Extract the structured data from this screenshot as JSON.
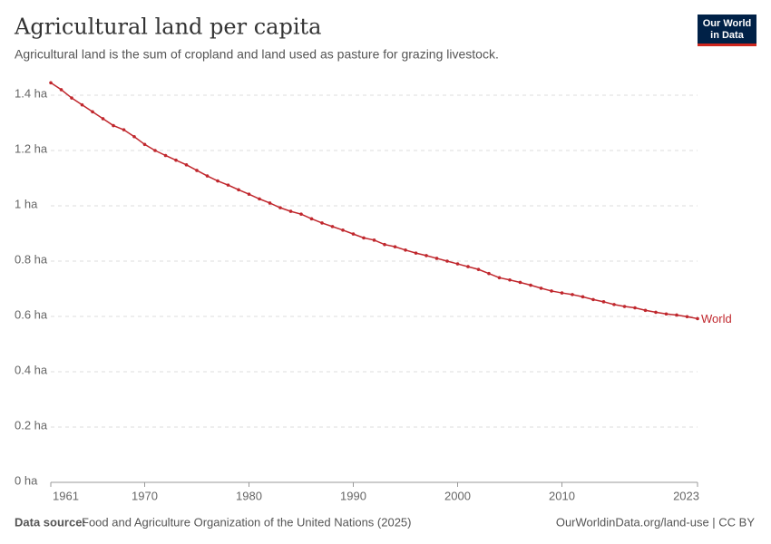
{
  "chart_data": {
    "type": "line",
    "title": "Agricultural land per capita",
    "subtitle": "Agricultural land is the sum of cropland and land used as pasture for grazing livestock.",
    "logo": [
      "Our World",
      "in Data"
    ],
    "source_label": "Data source:",
    "source": "Food and Agriculture Organization of the United Nations (2025)",
    "link": "OurWorldinData.org/land-use | CC BY",
    "x": [
      1961,
      1962,
      1963,
      1964,
      1965,
      1966,
      1967,
      1968,
      1969,
      1970,
      1971,
      1972,
      1973,
      1974,
      1975,
      1976,
      1977,
      1978,
      1979,
      1980,
      1981,
      1982,
      1983,
      1984,
      1985,
      1986,
      1987,
      1988,
      1989,
      1990,
      1991,
      1992,
      1993,
      1994,
      1995,
      1996,
      1997,
      1998,
      1999,
      2000,
      2001,
      2002,
      2003,
      2004,
      2005,
      2006,
      2007,
      2008,
      2009,
      2010,
      2011,
      2012,
      2013,
      2014,
      2015,
      2016,
      2017,
      2018,
      2019,
      2020,
      2021,
      2022,
      2023
    ],
    "series": [
      {
        "name": "World",
        "color": "#c0272d",
        "values": [
          1.445,
          1.42,
          1.39,
          1.365,
          1.34,
          1.315,
          1.29,
          1.275,
          1.25,
          1.222,
          1.2,
          1.182,
          1.165,
          1.148,
          1.128,
          1.108,
          1.09,
          1.075,
          1.058,
          1.042,
          1.025,
          1.01,
          0.993,
          0.98,
          0.97,
          0.953,
          0.938,
          0.925,
          0.912,
          0.898,
          0.884,
          0.876,
          0.86,
          0.852,
          0.84,
          0.829,
          0.82,
          0.81,
          0.8,
          0.79,
          0.78,
          0.77,
          0.755,
          0.74,
          0.732,
          0.723,
          0.713,
          0.702,
          0.692,
          0.685,
          0.679,
          0.671,
          0.661,
          0.653,
          0.643,
          0.636,
          0.631,
          0.622,
          0.615,
          0.609,
          0.605,
          0.599,
          0.592
        ]
      }
    ],
    "xlim": [
      1961,
      2023
    ],
    "xticks": [
      1961,
      1970,
      1980,
      1990,
      2000,
      2010,
      2023
    ],
    "ylim": [
      0,
      1.4
    ],
    "yticks": [
      {
        "value": 0,
        "label": "0 ha"
      },
      {
        "value": 0.2,
        "label": "0.2 ha"
      },
      {
        "value": 0.4,
        "label": "0.4 ha"
      },
      {
        "value": 0.6,
        "label": "0.6 ha"
      },
      {
        "value": 0.8,
        "label": "0.8 ha"
      },
      {
        "value": 1,
        "label": "1 ha"
      },
      {
        "value": 1.2,
        "label": "1.2 ha"
      },
      {
        "value": 1.4,
        "label": "1.4 ha"
      }
    ],
    "grid": true
  }
}
